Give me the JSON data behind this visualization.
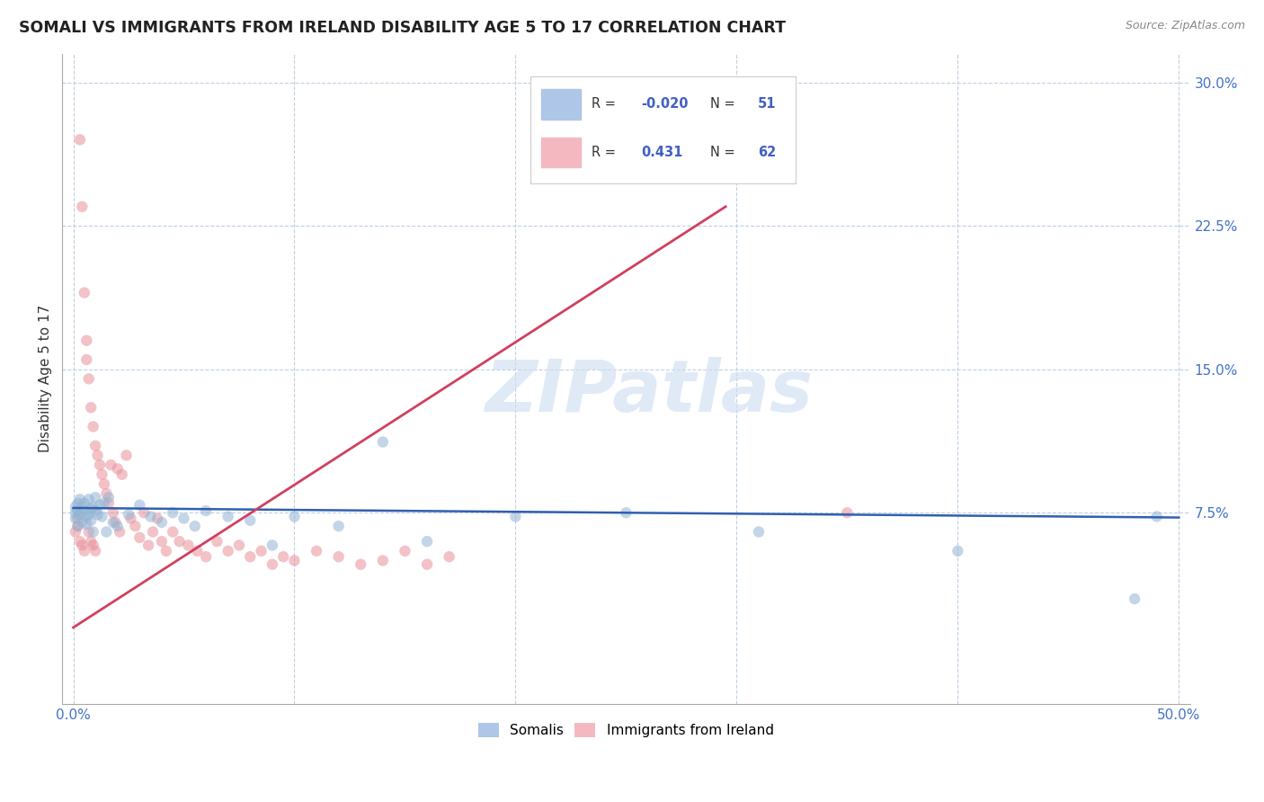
{
  "title": "SOMALI VS IMMIGRANTS FROM IRELAND DISABILITY AGE 5 TO 17 CORRELATION CHART",
  "source": "Source: ZipAtlas.com",
  "ylabel": "Disability Age 5 to 17",
  "watermark_text": "ZIPatlas",
  "somali_color": "#92b4d4",
  "ireland_color": "#e8909a",
  "somali_line_color": "#3060b0",
  "ireland_line_color": "#d04060",
  "bg_color": "#ffffff",
  "grid_color": "#c0d0e0",
  "xlim": [
    -0.005,
    0.505
  ],
  "ylim": [
    -0.025,
    0.315
  ],
  "yticks": [
    0.075,
    0.15,
    0.225,
    0.3
  ],
  "ytick_labels": [
    "7.5%",
    "15.0%",
    "22.5%",
    "30.0%"
  ],
  "xticks": [
    0.0,
    0.1,
    0.2,
    0.3,
    0.4,
    0.5
  ],
  "xtick_labels": [
    "0.0%",
    "",
    "",
    "",
    "",
    "50.0%"
  ],
  "somali_R": -0.02,
  "somali_N": 51,
  "ireland_R": 0.431,
  "ireland_N": 62,
  "somali_line_x": [
    0.0,
    0.5
  ],
  "somali_line_y": [
    0.0775,
    0.0725
  ],
  "ireland_line_x": [
    0.0,
    0.295
  ],
  "ireland_line_y": [
    0.015,
    0.235
  ],
  "ireland_scatter_x": [
    0.001,
    0.002,
    0.002,
    0.003,
    0.003,
    0.004,
    0.004,
    0.005,
    0.005,
    0.006,
    0.006,
    0.007,
    0.007,
    0.008,
    0.008,
    0.009,
    0.009,
    0.01,
    0.01,
    0.011,
    0.012,
    0.013,
    0.014,
    0.015,
    0.016,
    0.017,
    0.018,
    0.019,
    0.02,
    0.021,
    0.022,
    0.024,
    0.026,
    0.028,
    0.03,
    0.032,
    0.034,
    0.036,
    0.038,
    0.04,
    0.042,
    0.045,
    0.048,
    0.052,
    0.056,
    0.06,
    0.065,
    0.07,
    0.075,
    0.08,
    0.085,
    0.09,
    0.095,
    0.1,
    0.11,
    0.12,
    0.13,
    0.14,
    0.15,
    0.16,
    0.17,
    0.35
  ],
  "ireland_scatter_y": [
    0.065,
    0.068,
    0.072,
    0.27,
    0.06,
    0.235,
    0.058,
    0.19,
    0.055,
    0.165,
    0.155,
    0.065,
    0.145,
    0.13,
    0.06,
    0.12,
    0.058,
    0.11,
    0.055,
    0.105,
    0.1,
    0.095,
    0.09,
    0.085,
    0.08,
    0.1,
    0.075,
    0.07,
    0.098,
    0.065,
    0.095,
    0.105,
    0.072,
    0.068,
    0.062,
    0.075,
    0.058,
    0.065,
    0.072,
    0.06,
    0.055,
    0.065,
    0.06,
    0.058,
    0.055,
    0.052,
    0.06,
    0.055,
    0.058,
    0.052,
    0.055,
    0.048,
    0.052,
    0.05,
    0.055,
    0.052,
    0.048,
    0.05,
    0.055,
    0.048,
    0.052,
    0.075
  ],
  "somali_scatter_x": [
    0.001,
    0.001,
    0.001,
    0.002,
    0.002,
    0.002,
    0.003,
    0.003,
    0.004,
    0.004,
    0.005,
    0.005,
    0.006,
    0.006,
    0.007,
    0.007,
    0.008,
    0.008,
    0.009,
    0.009,
    0.01,
    0.01,
    0.011,
    0.012,
    0.013,
    0.014,
    0.015,
    0.016,
    0.018,
    0.02,
    0.025,
    0.03,
    0.035,
    0.04,
    0.045,
    0.05,
    0.055,
    0.06,
    0.07,
    0.08,
    0.09,
    0.1,
    0.12,
    0.14,
    0.16,
    0.2,
    0.25,
    0.31,
    0.4,
    0.48,
    0.49
  ],
  "somali_scatter_y": [
    0.075,
    0.072,
    0.078,
    0.08,
    0.076,
    0.068,
    0.082,
    0.074,
    0.07,
    0.078,
    0.08,
    0.076,
    0.069,
    0.073,
    0.082,
    0.074,
    0.077,
    0.071,
    0.078,
    0.065,
    0.083,
    0.076,
    0.074,
    0.079,
    0.073,
    0.08,
    0.065,
    0.083,
    0.07,
    0.068,
    0.074,
    0.079,
    0.073,
    0.07,
    0.075,
    0.072,
    0.068,
    0.076,
    0.073,
    0.071,
    0.058,
    0.073,
    0.068,
    0.112,
    0.06,
    0.073,
    0.075,
    0.065,
    0.055,
    0.03,
    0.073
  ]
}
